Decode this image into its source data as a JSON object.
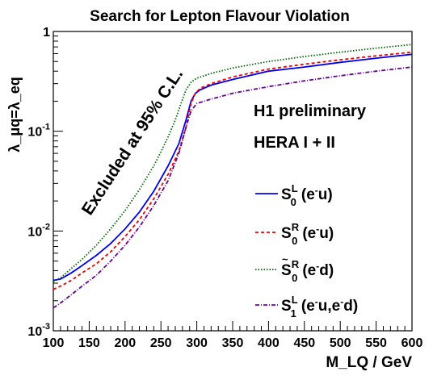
{
  "chart_data": {
    "type": "line",
    "title": "Search for Lepton Flavour Violation",
    "xlabel": "M_LQ / GeV",
    "ylabel": "λ_μq=λ_eq",
    "xlim": [
      100,
      600
    ],
    "ylim": [
      0.001,
      1
    ],
    "yscale": "log",
    "grid": false,
    "legend_position": "lower-right",
    "x_ticks": [
      100,
      150,
      200,
      250,
      300,
      350,
      400,
      450,
      500,
      550,
      600
    ],
    "y_ticks": [
      {
        "value": 0.001,
        "base": "10",
        "exp": "-3"
      },
      {
        "value": 0.01,
        "base": "10",
        "exp": "-2"
      },
      {
        "value": 0.1,
        "base": "10",
        "exp": "-1"
      },
      {
        "value": 1,
        "base": "1",
        "exp": ""
      }
    ],
    "annotations": {
      "excluded": "Excluded at 95% C.L.",
      "preliminary": "H1 preliminary",
      "dataset": "HERA I + II"
    },
    "series": [
      {
        "name": "S0L (e-u)",
        "label": {
          "main": "S",
          "sup": "L",
          "sub": "0",
          "tilde": false,
          "process": "(e",
          "process_sup": "-",
          "process_rest": "u)"
        },
        "color": "#0000ee",
        "dash": "solid",
        "x": [
          100,
          110,
          125,
          140,
          160,
          180,
          200,
          220,
          240,
          260,
          275,
          285,
          292,
          298,
          305,
          320,
          350,
          400,
          450,
          500,
          550,
          600
        ],
        "y": [
          0.0032,
          0.0033,
          0.0038,
          0.0045,
          0.0057,
          0.0075,
          0.0105,
          0.0155,
          0.025,
          0.045,
          0.075,
          0.13,
          0.2,
          0.24,
          0.26,
          0.29,
          0.33,
          0.4,
          0.44,
          0.49,
          0.54,
          0.59
        ]
      },
      {
        "name": "S0R (e-u)",
        "label": {
          "main": "S",
          "sup": "R",
          "sub": "0",
          "tilde": false,
          "process": "(e",
          "process_sup": "-",
          "process_rest": "u)"
        },
        "color": "#ee0000",
        "dash": "4,3",
        "x": [
          100,
          110,
          125,
          140,
          160,
          180,
          200,
          220,
          240,
          260,
          275,
          285,
          292,
          298,
          305,
          320,
          350,
          400,
          450,
          500,
          550,
          600
        ],
        "y": [
          0.0026,
          0.0028,
          0.0032,
          0.0038,
          0.0047,
          0.0062,
          0.0088,
          0.013,
          0.021,
          0.037,
          0.063,
          0.11,
          0.19,
          0.24,
          0.27,
          0.3,
          0.35,
          0.42,
          0.47,
          0.52,
          0.57,
          0.62
        ]
      },
      {
        "name": "S~0R (e-d)",
        "label": {
          "main": "S",
          "sup": "R",
          "sub": "0",
          "tilde": true,
          "process": "(e",
          "process_sup": "-",
          "process_rest": "d)"
        },
        "color": "#006600",
        "dash": "1.5,2",
        "x": [
          100,
          110,
          125,
          140,
          160,
          180,
          200,
          220,
          240,
          250,
          260,
          270,
          278,
          285,
          292,
          300,
          320,
          350,
          400,
          450,
          500,
          550,
          600
        ],
        "y": [
          0.0031,
          0.0034,
          0.0042,
          0.0052,
          0.0072,
          0.0105,
          0.016,
          0.026,
          0.045,
          0.062,
          0.088,
          0.13,
          0.19,
          0.26,
          0.31,
          0.34,
          0.38,
          0.43,
          0.5,
          0.56,
          0.62,
          0.68,
          0.74
        ]
      },
      {
        "name": "S1L (e-u,e-d)",
        "label": {
          "main": "S",
          "sup": "L",
          "sub": "1",
          "tilde": false,
          "process": "(e",
          "process_sup": "-",
          "process_rest": "u,e",
          "process_sup2": "-",
          "process_rest2": "d)"
        },
        "color": "#660099",
        "dash": "5,2,1,2",
        "x": [
          100,
          110,
          125,
          140,
          160,
          180,
          200,
          220,
          240,
          260,
          275,
          285,
          292,
          300,
          320,
          350,
          400,
          450,
          500,
          550,
          600
        ],
        "y": [
          0.0017,
          0.0019,
          0.0023,
          0.0028,
          0.0036,
          0.005,
          0.0072,
          0.011,
          0.018,
          0.032,
          0.06,
          0.11,
          0.16,
          0.19,
          0.21,
          0.24,
          0.28,
          0.32,
          0.36,
          0.4,
          0.44
        ]
      }
    ]
  }
}
